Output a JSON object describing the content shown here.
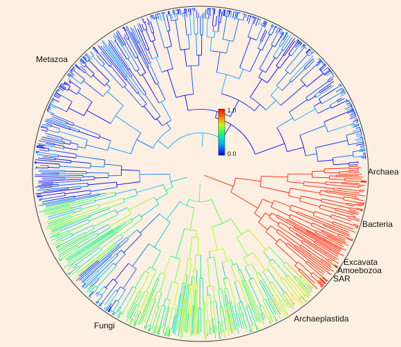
{
  "colorbar": {
    "max_label": "1.0",
    "min_label": "0.0"
  },
  "clades": [
    {
      "id": "metazoa",
      "label": "Metazoa"
    },
    {
      "id": "archaea",
      "label": "Archaea"
    },
    {
      "id": "bacteria",
      "label": "Bacteria"
    },
    {
      "id": "excavata",
      "label": "Excavata"
    },
    {
      "id": "amoebozoa",
      "label": "Amoebozoa"
    },
    {
      "id": "sar",
      "label": "SAR"
    },
    {
      "id": "archaeplastida",
      "label": "Archaeplastida"
    },
    {
      "id": "fungi",
      "label": "Fungi"
    }
  ],
  "colors": {
    "background": "#fdf0e3",
    "ring": "#333333",
    "scale": [
      "#0000ff",
      "#00b0ff",
      "#00ff80",
      "#c0ff00",
      "#ff8000",
      "#ff0000"
    ]
  }
}
